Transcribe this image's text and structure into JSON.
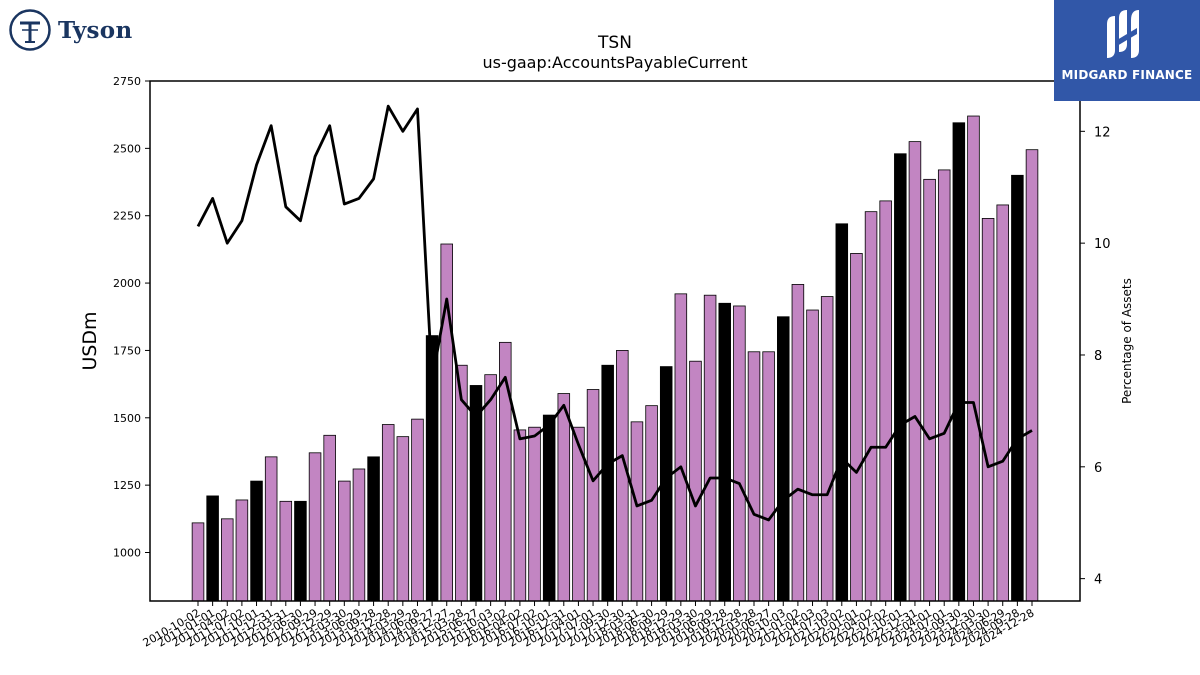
{
  "brand": {
    "left_logo_text": "Tyson",
    "right_logo_text": "MIDGARD FINANCE",
    "right_logo_bg": "#3157a8"
  },
  "chart_data": {
    "type": "bar",
    "title": "TSN",
    "subtitle": "us-gaap:AccountsPayableCurrent",
    "ylabel": "USDm",
    "y2label": "Percentage of Assets",
    "ylim": [
      820,
      2750
    ],
    "y2lim": [
      3.6,
      12.9
    ],
    "yticks": [
      1000,
      1250,
      1500,
      1750,
      2000,
      2250,
      2500,
      2750
    ],
    "y2ticks": [
      4,
      6,
      8,
      10,
      12
    ],
    "bar_color": "#c285c2",
    "highlight_color": "#000000",
    "line_color": "#000000",
    "categories": [
      "2010-10-02",
      "2011-01-01",
      "2011-04-02",
      "2011-07-02",
      "2011-10-01",
      "2011-12-31",
      "2012-03-31",
      "2012-06-30",
      "2012-09-29",
      "2012-12-29",
      "2013-03-30",
      "2013-06-29",
      "2013-09-28",
      "2013-12-28",
      "2014-03-29",
      "2014-06-28",
      "2014-09-27",
      "2014-12-27",
      "2015-03-28",
      "2015-06-27",
      "2015-10-03",
      "2016-01-02",
      "2016-04-02",
      "2016-07-02",
      "2016-10-01",
      "2016-12-31",
      "2017-04-01",
      "2017-07-01",
      "2017-09-30",
      "2017-12-30",
      "2018-03-31",
      "2018-06-30",
      "2018-09-29",
      "2018-12-29",
      "2019-03-30",
      "2019-06-29",
      "2019-09-28",
      "2019-12-28",
      "2020-03-28",
      "2020-06-27",
      "2020-10-03",
      "2021-01-02",
      "2021-04-03",
      "2021-07-03",
      "2021-10-02",
      "2022-01-01",
      "2022-04-02",
      "2022-07-02",
      "2022-10-01",
      "2022-12-31",
      "2023-04-01",
      "2023-07-01",
      "2023-09-30",
      "2023-12-30",
      "2024-03-30",
      "2024-06-29",
      "2024-09-28",
      "2024-12-28"
    ],
    "series": [
      {
        "type": "bar",
        "values": [
          1110,
          1210,
          1125,
          1195,
          1265,
          1355,
          1190,
          1190,
          1370,
          1435,
          1265,
          1310,
          1355,
          1475,
          1430,
          1495,
          1805,
          2145,
          1695,
          1620,
          1660,
          1780,
          1455,
          1465,
          1510,
          1590,
          1465,
          1605,
          1695,
          1750,
          1485,
          1545,
          1690,
          1960,
          1710,
          1955,
          1925,
          1915,
          1745,
          1745,
          1875,
          1995,
          1900,
          1950,
          2220,
          2110,
          2265,
          2305,
          2480,
          2525,
          2385,
          2420,
          2595,
          2620,
          2240,
          2290,
          2400,
          2495
        ],
        "highlight": [
          false,
          true,
          false,
          false,
          true,
          false,
          false,
          true,
          false,
          false,
          false,
          false,
          true,
          false,
          false,
          false,
          true,
          false,
          false,
          true,
          false,
          false,
          false,
          false,
          true,
          false,
          false,
          false,
          true,
          false,
          false,
          false,
          true,
          false,
          false,
          false,
          true,
          false,
          false,
          false,
          true,
          false,
          false,
          false,
          true,
          false,
          false,
          false,
          true,
          false,
          false,
          false,
          true,
          false,
          false,
          false,
          true,
          false
        ]
      },
      {
        "type": "line",
        "axis": "y2",
        "values": [
          10.3,
          10.8,
          10.0,
          10.4,
          11.4,
          12.1,
          10.65,
          10.4,
          11.55,
          12.1,
          10.7,
          10.8,
          11.15,
          12.45,
          12.0,
          12.4,
          7.55,
          9.0,
          7.2,
          6.9,
          7.2,
          7.6,
          6.5,
          6.55,
          6.75,
          7.1,
          6.4,
          5.75,
          6.05,
          6.2,
          5.3,
          5.4,
          5.8,
          6.0,
          5.3,
          5.8,
          5.8,
          5.7,
          5.15,
          5.05,
          5.4,
          5.6,
          5.5,
          5.5,
          6.15,
          5.9,
          6.35,
          6.35,
          6.75,
          6.9,
          6.5,
          6.6,
          7.15,
          7.15,
          6.0,
          6.1,
          6.5,
          6.65
        ]
      }
    ]
  }
}
